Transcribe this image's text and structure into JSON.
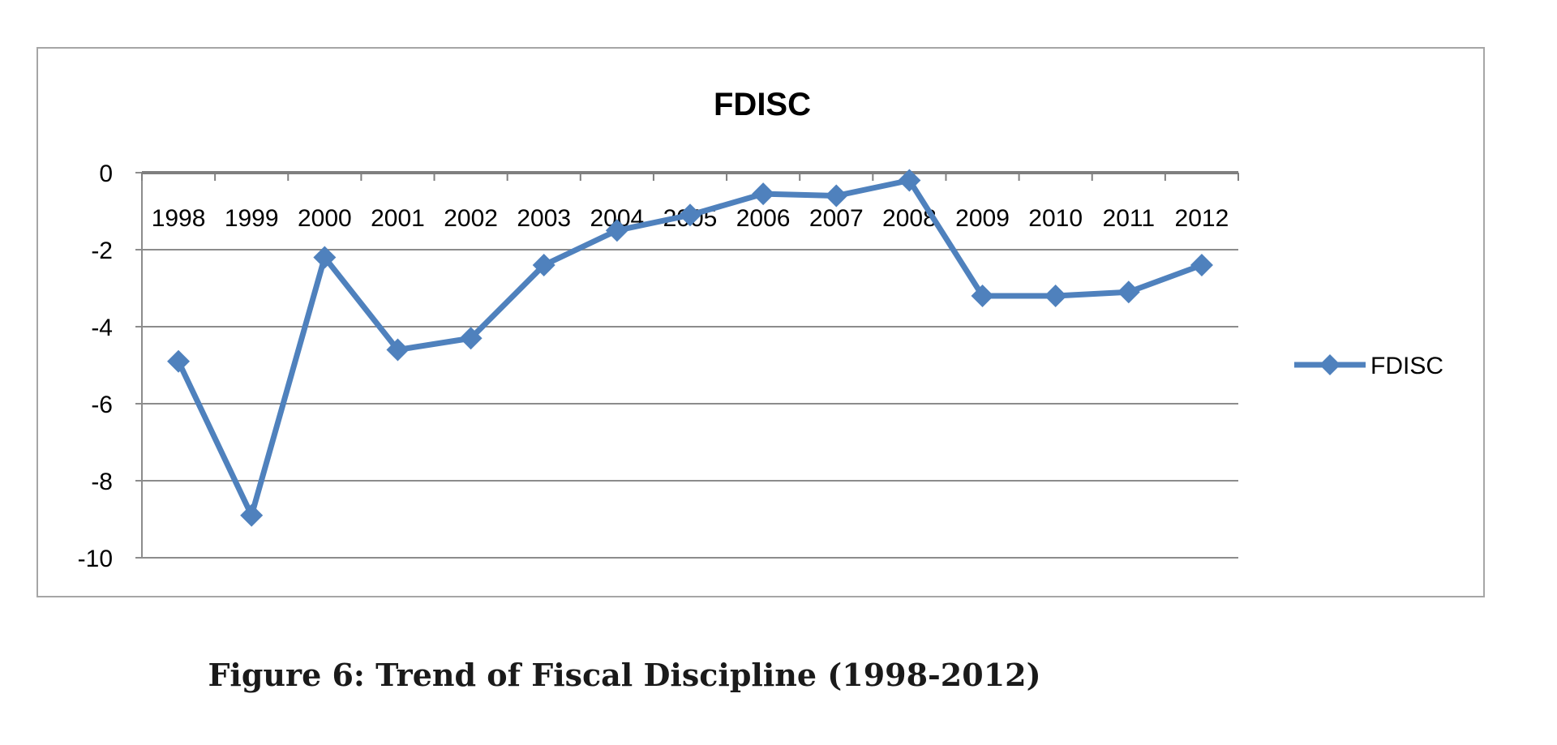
{
  "caption": "Figure 6: Trend of Fiscal Discipline (1998-2012)",
  "chart_data": {
    "type": "line",
    "title": "FDISC",
    "xlabel": "",
    "ylabel": "",
    "categories": [
      "1998",
      "1999",
      "2000",
      "2001",
      "2002",
      "2003",
      "2004",
      "2005",
      "2006",
      "2007",
      "2008",
      "2009",
      "2010",
      "2011",
      "2012"
    ],
    "series": [
      {
        "name": "FDISC",
        "color": "#4f81bd",
        "marker": "diamond",
        "values": [
          -4.9,
          -8.9,
          -2.2,
          -4.6,
          -4.3,
          -2.4,
          -1.5,
          -1.1,
          -0.55,
          -0.6,
          -0.2,
          -3.2,
          -3.2,
          -3.1,
          -2.4
        ]
      }
    ],
    "ylim": [
      -10,
      0
    ],
    "yticks": [
      0,
      -2,
      -4,
      -6,
      -8,
      -10
    ],
    "grid": true,
    "x_tick_labels_position": "top",
    "legend": "right"
  }
}
